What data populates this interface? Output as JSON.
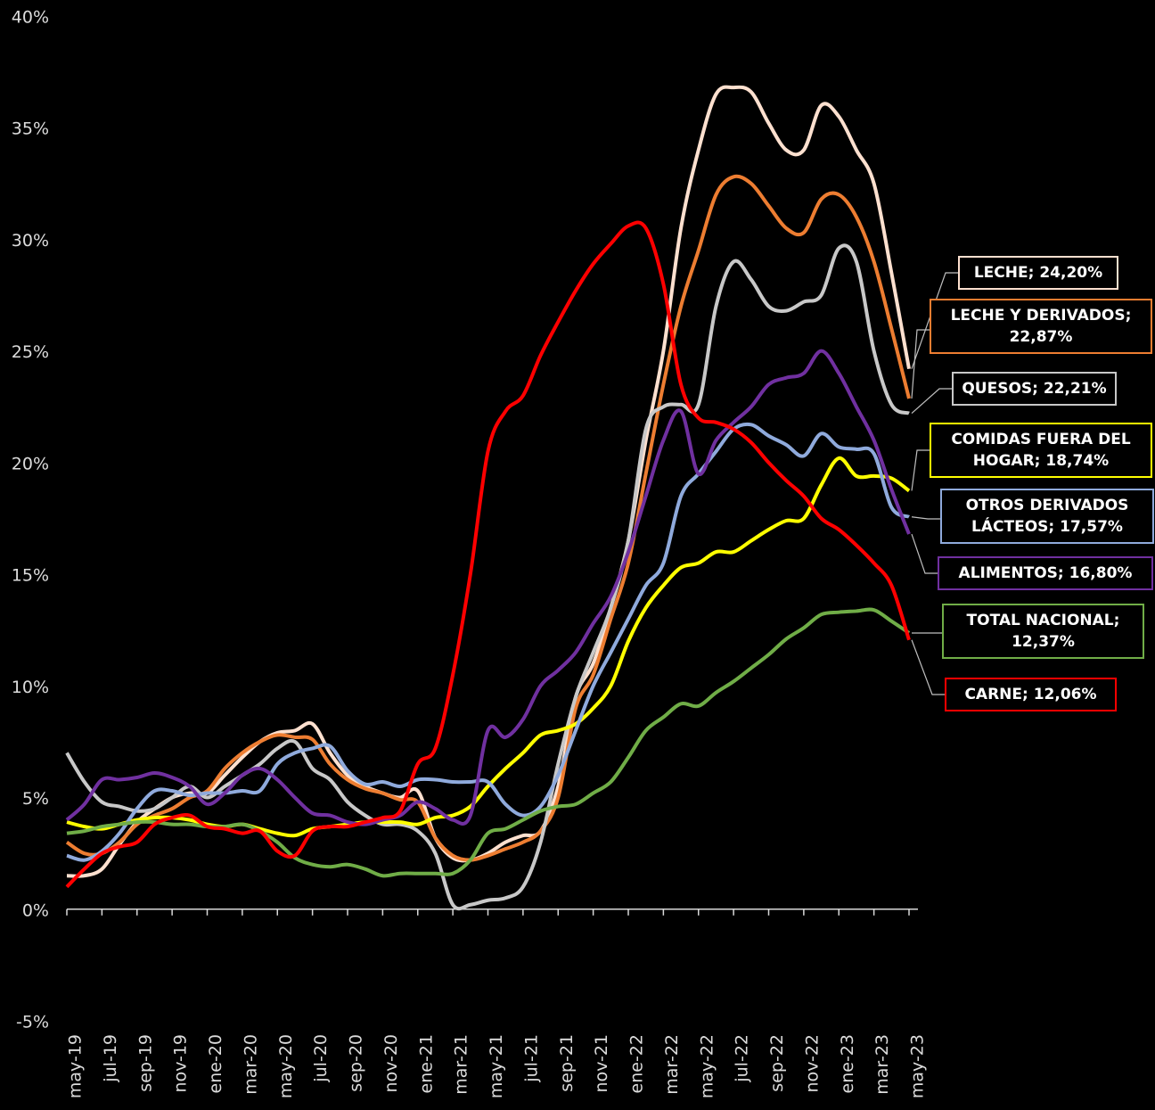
{
  "chart_data": {
    "type": "line",
    "categories": [
      "may-19",
      null,
      "jul-19",
      null,
      "sep-19",
      null,
      "nov-19",
      null,
      "ene-20",
      null,
      "mar-20",
      null,
      "may-20",
      null,
      "jul-20",
      null,
      "sep-20",
      null,
      "nov-20",
      null,
      "ene-21",
      null,
      "mar-21",
      null,
      "may-21",
      null,
      "jul-21",
      null,
      "sep-21",
      null,
      "nov-21",
      null,
      "ene-22",
      null,
      "mar-22",
      null,
      "may-22",
      null,
      "jul-22",
      null,
      "sep-22",
      null,
      "nov-22",
      null,
      "ene-23",
      null,
      "mar-23",
      null,
      "may-23"
    ],
    "ylim": [
      -5,
      40
    ],
    "yticks": [
      {
        "value": -5,
        "label": "-5%"
      },
      {
        "value": 0,
        "label": "0%"
      },
      {
        "value": 5,
        "label": "5%"
      },
      {
        "value": 10,
        "label": "10%"
      },
      {
        "value": 15,
        "label": "15%"
      },
      {
        "value": 20,
        "label": "20%"
      },
      {
        "value": 25,
        "label": "25%"
      },
      {
        "value": 30,
        "label": "30%"
      },
      {
        "value": 35,
        "label": "35%"
      },
      {
        "value": 40,
        "label": "40%"
      }
    ],
    "series": [
      {
        "name": "LECHE",
        "color": "#fde0cf",
        "end_label": "LECHE; 24,20%",
        "values": [
          1.5,
          1.5,
          1.8,
          2.9,
          3.9,
          4.5,
          5.0,
          5.2,
          5.2,
          6.0,
          6.8,
          7.5,
          7.9,
          8.0,
          8.3,
          7.0,
          6.0,
          5.5,
          5.2,
          5.0,
          5.3,
          3.2,
          2.3,
          2.2,
          2.5,
          3.0,
          3.3,
          3.5,
          5.5,
          9.5,
          11.0,
          13.5,
          16.5,
          21.0,
          25.0,
          30.5,
          34.0,
          36.5,
          36.8,
          36.6,
          35.2,
          34.0,
          34.0,
          36.0,
          35.5,
          34.0,
          32.5,
          28.5,
          24.2
        ]
      },
      {
        "name": "LECHE Y DERIVADOS",
        "color": "#ed7d31",
        "end_label": "LECHE Y DERIVADOS; 22,87%",
        "values": [
          3.0,
          2.5,
          2.5,
          3.0,
          3.8,
          4.2,
          4.5,
          5.0,
          5.3,
          6.3,
          7.0,
          7.5,
          7.8,
          7.7,
          7.6,
          6.5,
          5.8,
          5.4,
          5.2,
          4.9,
          4.8,
          3.2,
          2.4,
          2.2,
          2.4,
          2.7,
          3.0,
          3.5,
          5.0,
          9.0,
          10.5,
          13.0,
          15.5,
          19.5,
          23.5,
          27.0,
          29.5,
          32.0,
          32.8,
          32.5,
          31.5,
          30.5,
          30.3,
          31.8,
          32.0,
          31.0,
          29.0,
          26.0,
          22.87
        ]
      },
      {
        "name": "QUESOS",
        "color": "#c8c8c8",
        "end_label": "QUESOS; 22,21%",
        "values": [
          7.0,
          5.7,
          4.8,
          4.6,
          4.4,
          4.5,
          5.0,
          5.5,
          5.0,
          5.5,
          6.0,
          6.5,
          7.2,
          7.5,
          6.3,
          5.8,
          4.8,
          4.2,
          3.8,
          3.8,
          3.5,
          2.5,
          0.2,
          0.2,
          0.4,
          0.5,
          1.0,
          3.0,
          6.5,
          9.5,
          11.5,
          13.5,
          16.5,
          21.5,
          22.5,
          22.6,
          22.6,
          27.0,
          29.0,
          28.2,
          27.0,
          26.8,
          27.2,
          27.5,
          29.6,
          29.0,
          25.0,
          22.6,
          22.21
        ]
      },
      {
        "name": "COMIDAS FUERA DEL HOGAR",
        "color": "#ffff00",
        "end_label": "COMIDAS FUERA DEL HOGAR; 18,74%",
        "values": [
          3.9,
          3.7,
          3.6,
          3.8,
          4.0,
          4.1,
          4.1,
          4.0,
          3.8,
          3.7,
          3.8,
          3.6,
          3.4,
          3.3,
          3.6,
          3.7,
          3.8,
          3.9,
          3.9,
          3.9,
          3.8,
          4.1,
          4.2,
          4.6,
          5.5,
          6.3,
          7.0,
          7.8,
          8.0,
          8.3,
          9.0,
          10.0,
          12.0,
          13.5,
          14.5,
          15.3,
          15.5,
          16.0,
          16.0,
          16.5,
          17.0,
          17.4,
          17.5,
          19.0,
          20.2,
          19.4,
          19.4,
          19.3,
          18.74
        ]
      },
      {
        "name": "OTROS DERIVADOS LÁCTEOS",
        "color": "#8faadc",
        "end_label": "OTROS DERIVADOS LÁCTEOS; 17,57%",
        "values": [
          2.4,
          2.2,
          2.6,
          3.4,
          4.5,
          5.3,
          5.3,
          5.1,
          5.2,
          5.2,
          5.3,
          5.3,
          6.5,
          7.0,
          7.2,
          7.3,
          6.2,
          5.6,
          5.7,
          5.5,
          5.8,
          5.8,
          5.7,
          5.7,
          5.7,
          4.7,
          4.2,
          4.6,
          6.0,
          8.0,
          10.0,
          11.5,
          13.0,
          14.5,
          15.5,
          18.5,
          19.5,
          20.5,
          21.5,
          21.7,
          21.2,
          20.8,
          20.3,
          21.3,
          20.7,
          20.6,
          20.4,
          18.0,
          17.57
        ]
      },
      {
        "name": "ALIMENTOS",
        "color": "#7030a0",
        "end_label": "ALIMENTOS; 16,80%",
        "values": [
          4.0,
          4.7,
          5.8,
          5.8,
          5.9,
          6.1,
          5.9,
          5.5,
          4.7,
          5.2,
          6.0,
          6.3,
          5.8,
          5.0,
          4.3,
          4.2,
          3.9,
          3.8,
          4.0,
          4.2,
          4.8,
          4.5,
          4.0,
          4.2,
          8.0,
          7.7,
          8.5,
          10.0,
          10.7,
          11.5,
          12.8,
          14.0,
          16.0,
          18.5,
          21.0,
          22.3,
          19.5,
          21.0,
          21.8,
          22.5,
          23.5,
          23.8,
          24.0,
          25.0,
          24.0,
          22.5,
          21.0,
          18.8,
          16.8
        ]
      },
      {
        "name": "TOTAL NACIONAL",
        "color": "#70ad47",
        "end_label": "TOTAL NACIONAL; 12,37%",
        "values": [
          3.4,
          3.5,
          3.7,
          3.8,
          3.9,
          3.9,
          3.8,
          3.8,
          3.7,
          3.7,
          3.8,
          3.5,
          3.0,
          2.3,
          2.0,
          1.9,
          2.0,
          1.8,
          1.5,
          1.6,
          1.6,
          1.6,
          1.6,
          2.2,
          3.4,
          3.6,
          4.0,
          4.4,
          4.6,
          4.7,
          5.2,
          5.7,
          6.8,
          8.0,
          8.6,
          9.2,
          9.1,
          9.7,
          10.2,
          10.8,
          11.4,
          12.1,
          12.6,
          13.2,
          13.3,
          13.35,
          13.4,
          12.9,
          12.37
        ]
      },
      {
        "name": "CARNE",
        "color": "#ff0000",
        "end_label": "CARNE; 12,06%",
        "values": [
          1.0,
          1.8,
          2.5,
          2.8,
          3.0,
          3.8,
          4.1,
          4.2,
          3.7,
          3.6,
          3.4,
          3.5,
          2.6,
          2.4,
          3.5,
          3.7,
          3.7,
          3.9,
          4.1,
          4.4,
          6.5,
          7.2,
          10.5,
          15.0,
          20.5,
          22.3,
          23.0,
          24.8,
          26.3,
          27.7,
          28.9,
          29.8,
          30.6,
          30.5,
          28.0,
          23.5,
          22.0,
          21.8,
          21.5,
          20.9,
          20.0,
          19.2,
          18.5,
          17.5,
          17.0,
          16.3,
          15.5,
          14.5,
          12.06
        ]
      }
    ]
  }
}
